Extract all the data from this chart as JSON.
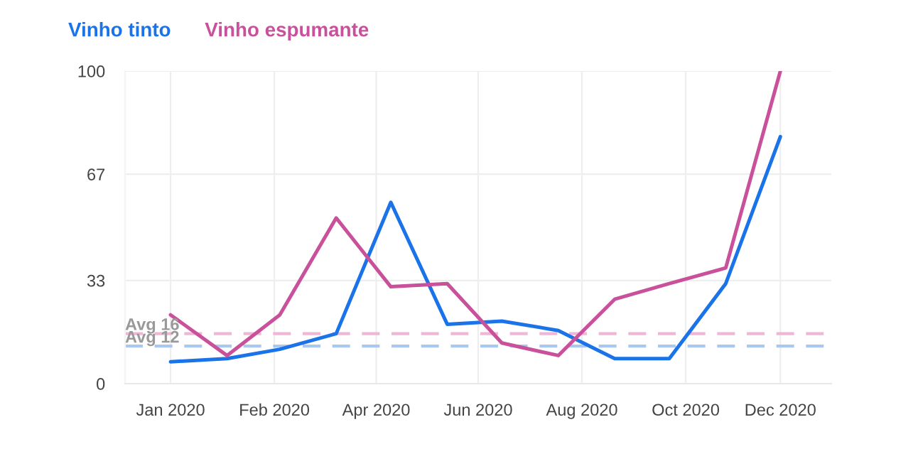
{
  "chart_data": {
    "type": "line",
    "x": [
      "2020-01-01",
      "2020-02-01",
      "2020-03-01",
      "2020-04-01",
      "2020-05-01",
      "2020-06-01",
      "2020-07-01",
      "2020-08-01",
      "2020-09-01",
      "2020-10-01",
      "2020-11-01",
      "2020-12-01"
    ],
    "series": [
      {
        "name": "Vinho tinto",
        "color": "#1a73e8",
        "values": [
          7,
          8,
          11,
          16,
          58,
          19,
          20,
          17,
          8,
          8,
          32,
          79
        ]
      },
      {
        "name": "Vinho espumante",
        "color": "#c9509a",
        "values": [
          22,
          9,
          22,
          53,
          31,
          32,
          13,
          9,
          27,
          32,
          37,
          100
        ]
      }
    ],
    "xlim": [
      "2019-12-07",
      "2020-12-29"
    ],
    "xticks": [
      {
        "value": "2020-01-01",
        "label": "Jan 2020"
      },
      {
        "value": "2020-02-27",
        "label": "Feb 2020"
      },
      {
        "value": "2020-04-23",
        "label": "Apr 2020"
      },
      {
        "value": "2020-06-18",
        "label": "Jun 2020"
      },
      {
        "value": "2020-08-14",
        "label": "Aug 2020"
      },
      {
        "value": "2020-10-10",
        "label": "Oct 2020"
      },
      {
        "value": "2020-12-01",
        "label": "Dec 2020"
      }
    ],
    "ylim": [
      0,
      100
    ],
    "yticks": [
      0,
      33,
      67,
      100
    ],
    "ref_lines": [
      {
        "axis": "y",
        "value": 16,
        "label": "Avg 16",
        "color": "#f0b6d6",
        "line_style": "dashed"
      },
      {
        "axis": "y",
        "value": 12,
        "label": "Avg 12",
        "color": "#a8c8f0",
        "line_style": "dashed"
      }
    ],
    "grid": true,
    "legend": "top left",
    "line_style": "solid",
    "marker": "none"
  }
}
